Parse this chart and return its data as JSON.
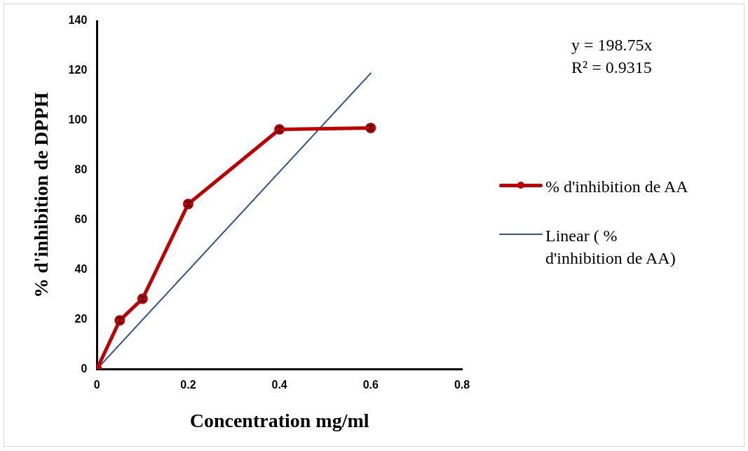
{
  "chart_data": {
    "type": "line",
    "x": [
      0,
      0.05,
      0.1,
      0.2,
      0.4,
      0.6
    ],
    "series": [
      {
        "name": "% d'inhibition de AA",
        "color": "#c00000",
        "values": [
          0,
          19.6,
          28.3,
          66.4,
          96.4,
          97.0
        ],
        "errors": [
          null,
          1,
          1,
          1,
          1,
          1
        ],
        "marker": "circle",
        "line_style": "solid"
      },
      {
        "name": "Linear ( % d'inhibition de AA)",
        "type": "line",
        "color": "#2f5597",
        "x": [
          0,
          0.6
        ],
        "values": [
          0,
          119
        ],
        "marker": "none",
        "line_style": "solid"
      }
    ],
    "xlabel": "Concentration mg/ml",
    "ylabel": "% d'inhibition de DPPH",
    "xlim": [
      0,
      0.8
    ],
    "xticks": [
      0,
      0.2,
      0.4,
      0.6,
      0.8
    ],
    "ylim": [
      0,
      140
    ],
    "yticks": [
      0,
      20,
      40,
      60,
      80,
      100,
      120,
      140
    ],
    "grid": false,
    "legend": "right",
    "annotations": [
      "y = 198.75x",
      "R² = 0.9315"
    ]
  }
}
